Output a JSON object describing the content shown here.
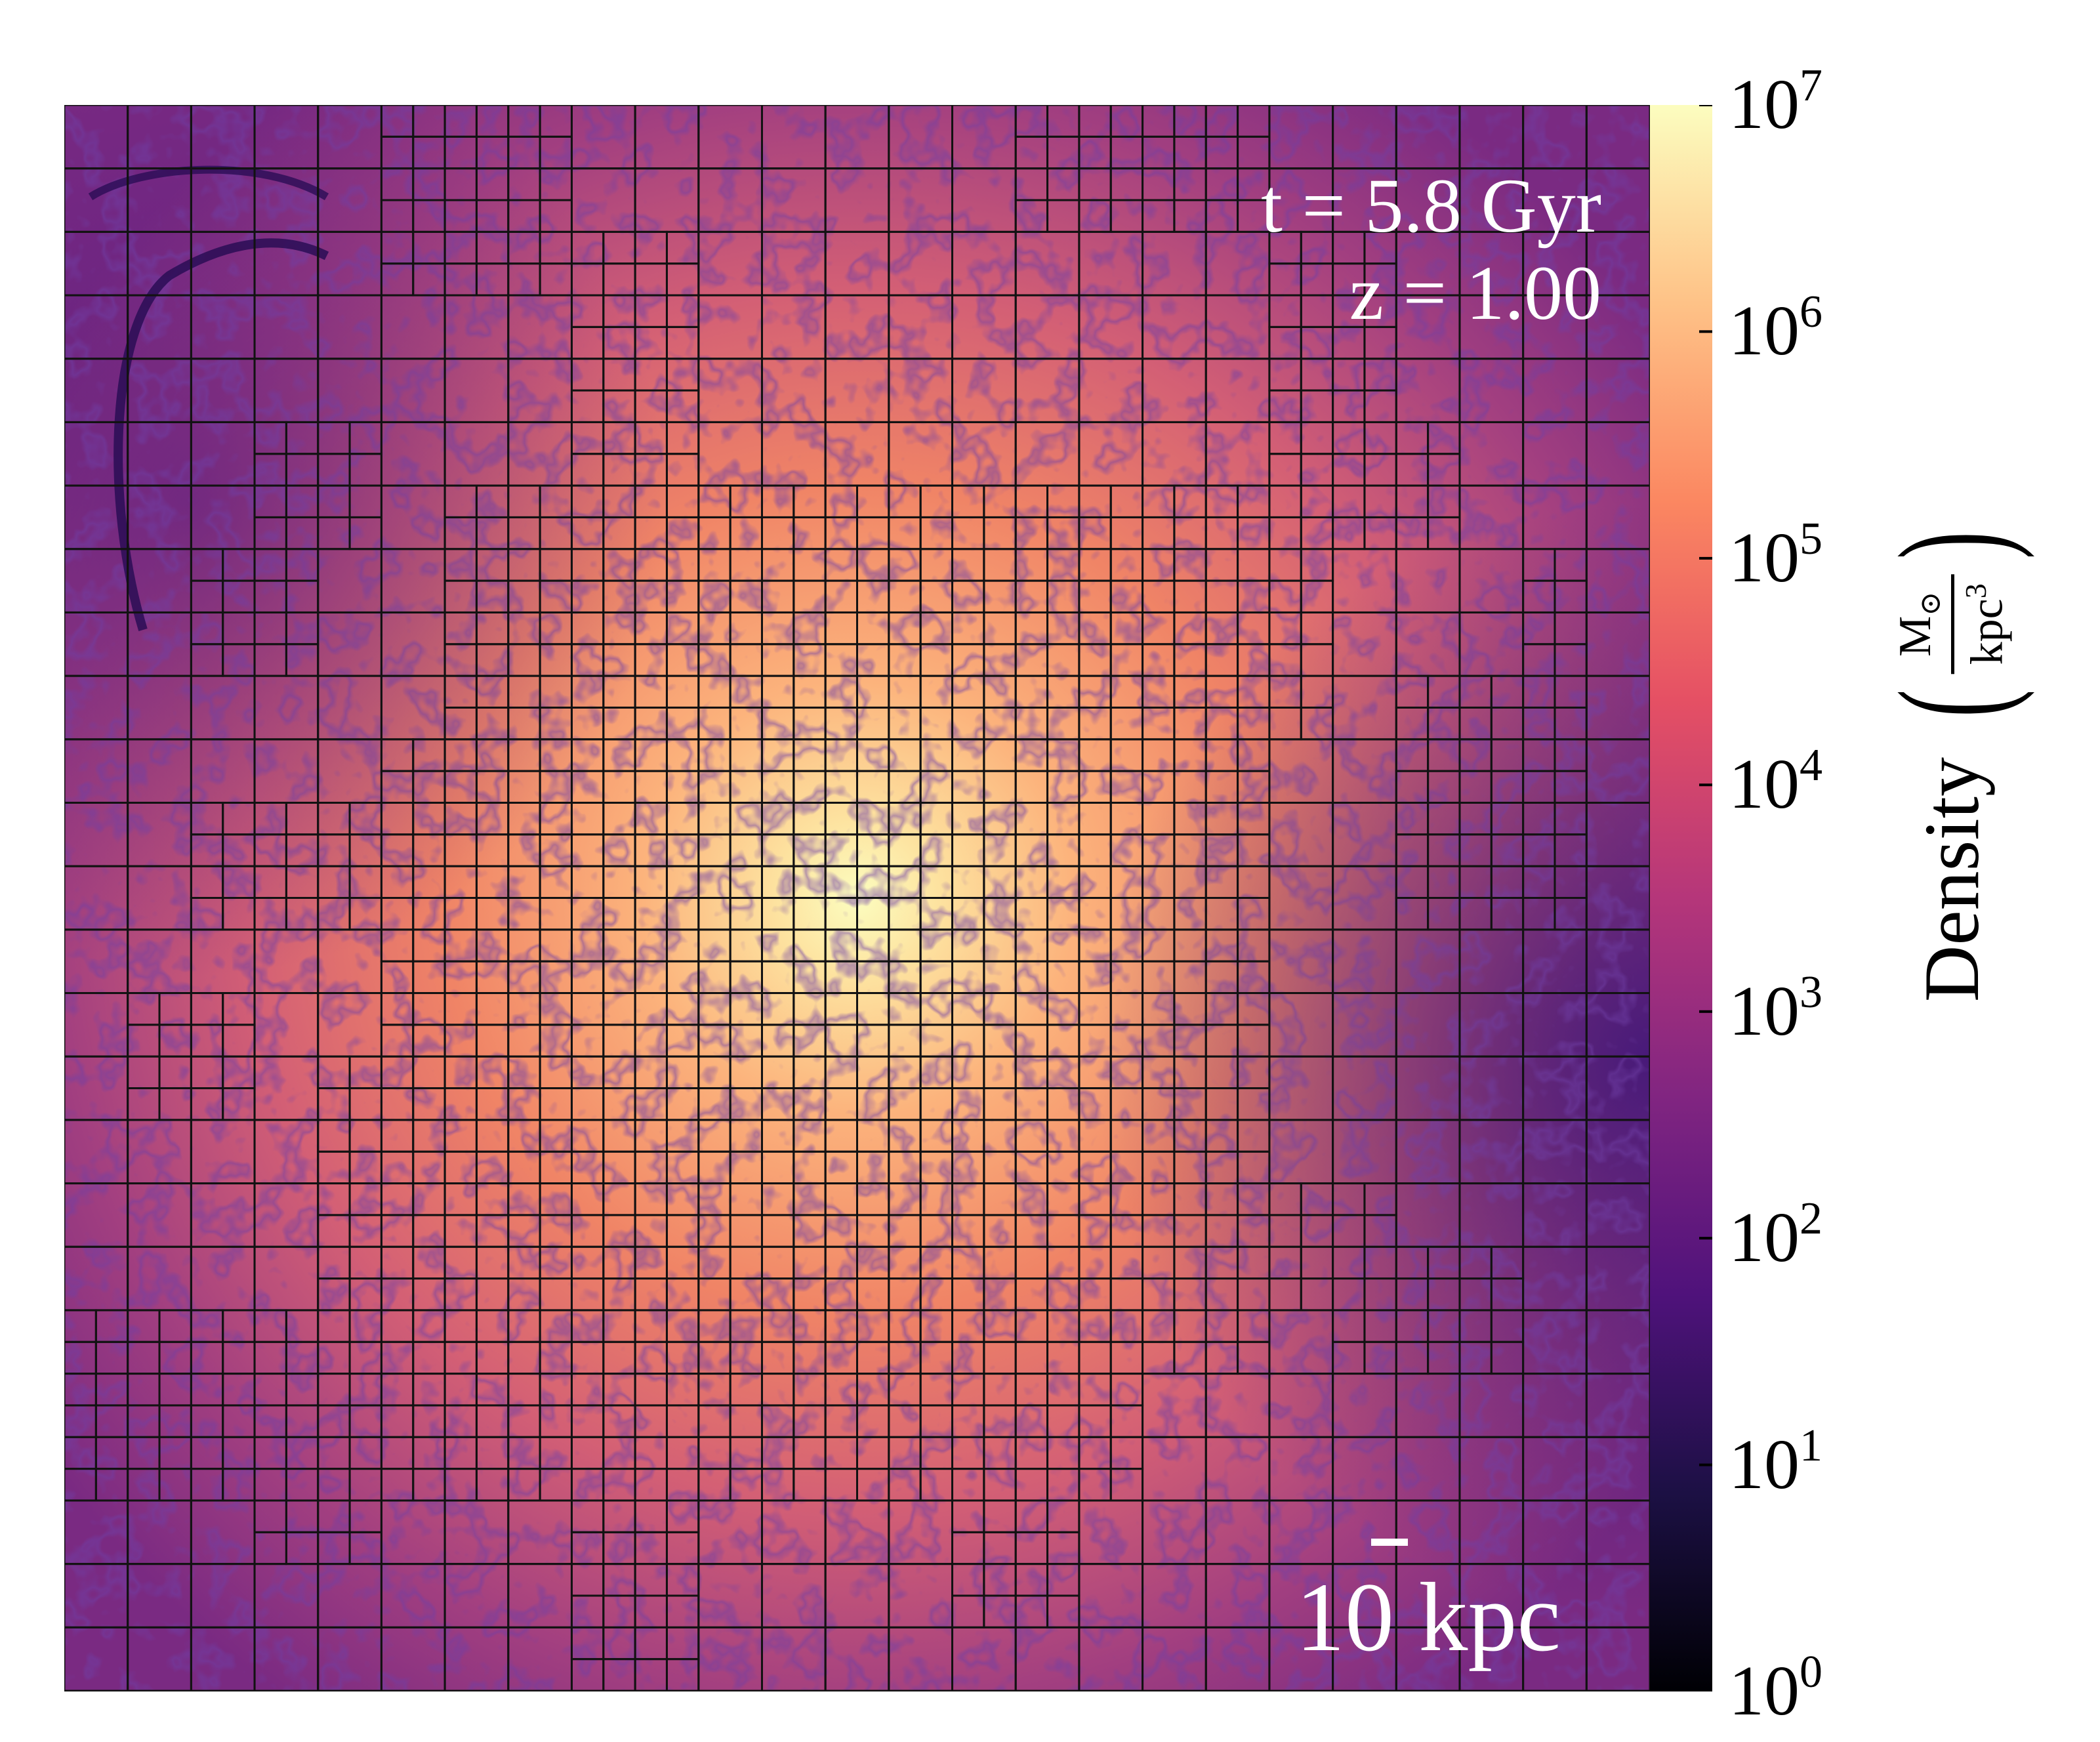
{
  "image": {
    "type": "density-projection",
    "annotations": {
      "time": "t = 5.8 Gyr",
      "redshift": "z = 1.00",
      "scale_bar_label": "10 kpc"
    }
  },
  "colorbar": {
    "label": "Density",
    "units_numerator": "M",
    "units_numerator_symbol": "⊙",
    "units_denominator": "kpc",
    "units_denominator_exp": "3",
    "colormap": "magma",
    "colors": [
      "#000004",
      "#1c1044",
      "#4f127b",
      "#812581",
      "#b5367a",
      "#e55064",
      "#fb8761",
      "#fec287",
      "#fcfdbf"
    ],
    "ticks": [
      {
        "base": "10",
        "exp": "7"
      },
      {
        "base": "10",
        "exp": "6"
      },
      {
        "base": "10",
        "exp": "5"
      },
      {
        "base": "10",
        "exp": "4"
      },
      {
        "base": "10",
        "exp": "3"
      },
      {
        "base": "10",
        "exp": "2"
      },
      {
        "base": "10",
        "exp": "1"
      },
      {
        "base": "10",
        "exp": "0"
      }
    ]
  }
}
